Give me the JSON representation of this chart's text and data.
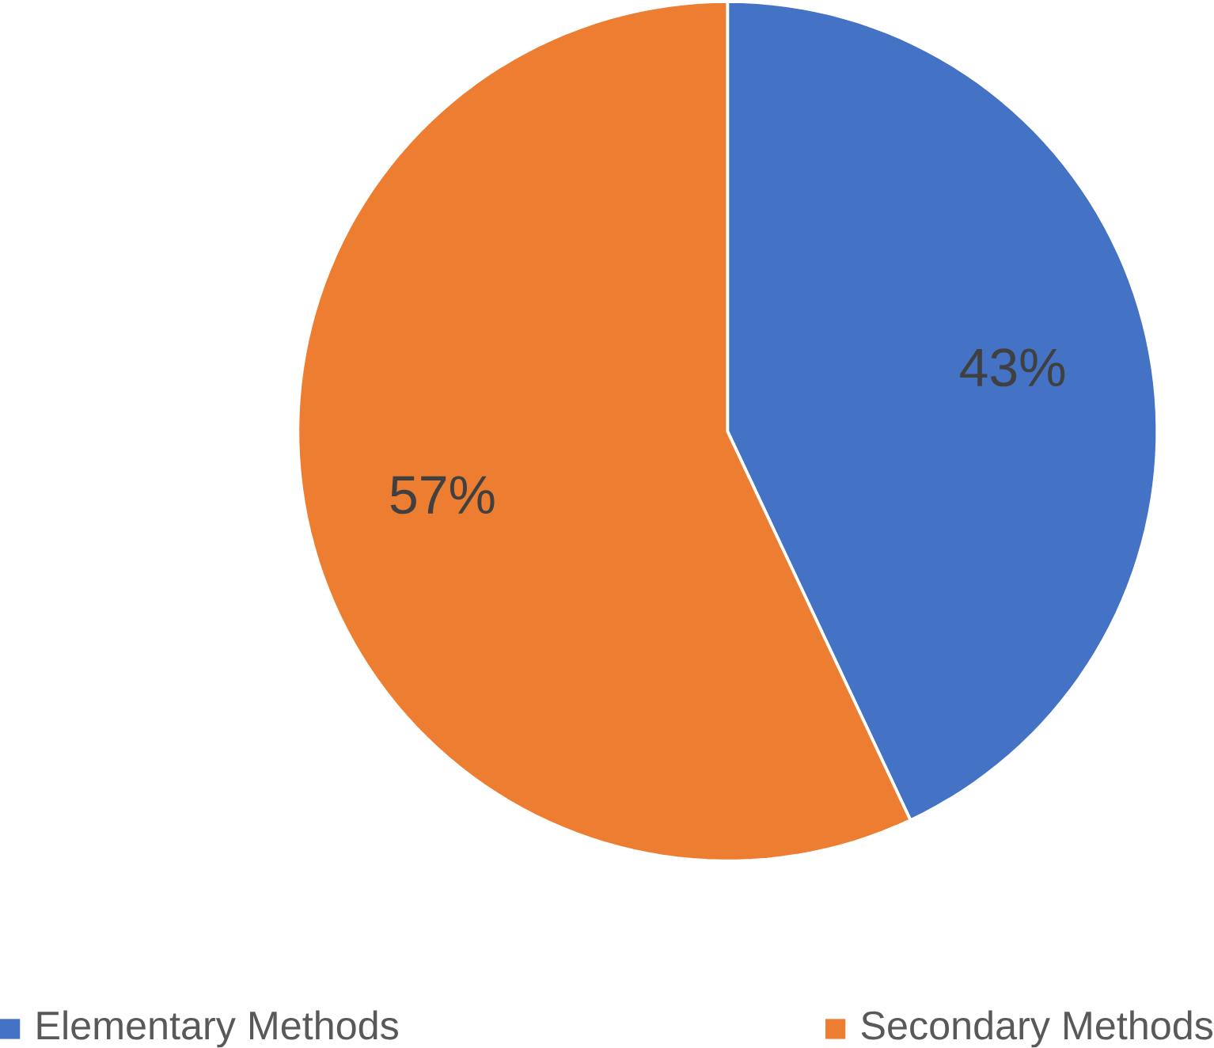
{
  "chart_data": {
    "type": "pie",
    "categories": [
      "Elementary Methods",
      "Secondary Methods"
    ],
    "values": [
      43,
      57
    ],
    "colors": [
      "#4472c4",
      "#ed7d31"
    ],
    "value_labels": [
      "43%",
      "57%"
    ],
    "legend": "bottom"
  }
}
